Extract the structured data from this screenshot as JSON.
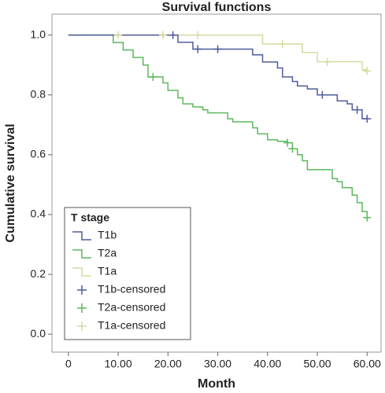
{
  "chart_data": {
    "type": "step",
    "title": "Survival functions",
    "x_label": "Month",
    "y_label": "Cumulative survival",
    "xlim": [
      -3.3,
      62.8
    ],
    "ylim": [
      -0.06,
      1.07
    ],
    "xticks": [
      0,
      {
        "value": 10,
        "label": "10.00"
      },
      {
        "value": 20,
        "label": "20.00"
      },
      {
        "value": 30,
        "label": "30.00"
      },
      {
        "value": 40,
        "label": "40.00"
      },
      {
        "value": 50,
        "label": "50.00"
      },
      {
        "value": 60,
        "label": "60.00"
      }
    ],
    "yticks": [
      {
        "value": 0,
        "label": "0.0"
      },
      0.2,
      0.4,
      0.6,
      0.8,
      {
        "value": 1,
        "label": "1.0"
      }
    ],
    "legend": "lower left",
    "legend_title": "T stage",
    "series": [
      {
        "name": "T1b",
        "mark": "step",
        "color": "#4f5b9e",
        "x": [
          0,
          22,
          25,
          37,
          39,
          42,
          43,
          45,
          46,
          48,
          50,
          54,
          56,
          57,
          59,
          60
        ],
        "values": [
          1.0,
          0.976,
          0.953,
          0.934,
          0.91,
          0.89,
          0.86,
          0.845,
          0.83,
          0.82,
          0.8,
          0.78,
          0.77,
          0.75,
          0.72,
          0.72
        ]
      },
      {
        "name": "T2a",
        "mark": "step",
        "color": "#5cb85c",
        "x": [
          0,
          9,
          11,
          13,
          15,
          16,
          19,
          20,
          22,
          23,
          25,
          27,
          28,
          32,
          33,
          37,
          38,
          40,
          42,
          44,
          45,
          46,
          47,
          48,
          53,
          54,
          55,
          57,
          58,
          59,
          60
        ],
        "values": [
          1.0,
          0.975,
          0.95,
          0.925,
          0.9,
          0.86,
          0.84,
          0.815,
          0.79,
          0.77,
          0.76,
          0.75,
          0.74,
          0.72,
          0.71,
          0.69,
          0.67,
          0.65,
          0.645,
          0.64,
          0.62,
          0.6,
          0.58,
          0.55,
          0.52,
          0.51,
          0.49,
          0.465,
          0.44,
          0.41,
          0.39
        ]
      },
      {
        "name": "T1a",
        "mark": "step",
        "color": "#d6d99e",
        "x": [
          0,
          39,
          47,
          50,
          59,
          60
        ],
        "values": [
          1.0,
          0.97,
          0.942,
          0.911,
          0.884,
          0.884
        ]
      },
      {
        "name": "T1b-censored",
        "mark": "plus",
        "color": "#4f5b9e",
        "x": [
          21,
          26,
          30,
          51,
          58,
          60
        ],
        "values": [
          1.0,
          0.953,
          0.953,
          0.8,
          0.75,
          0.72
        ]
      },
      {
        "name": "T2a-censored",
        "mark": "plus",
        "color": "#5cb85c",
        "x": [
          17,
          44,
          45,
          60
        ],
        "values": [
          0.86,
          0.64,
          0.62,
          0.39
        ]
      },
      {
        "name": "T1a-censored",
        "mark": "plus",
        "color": "#d6d99e",
        "x": [
          10,
          19,
          26,
          43,
          52,
          60
        ],
        "values": [
          1.0,
          1.0,
          1.0,
          0.97,
          0.91,
          0.88
        ]
      }
    ]
  }
}
